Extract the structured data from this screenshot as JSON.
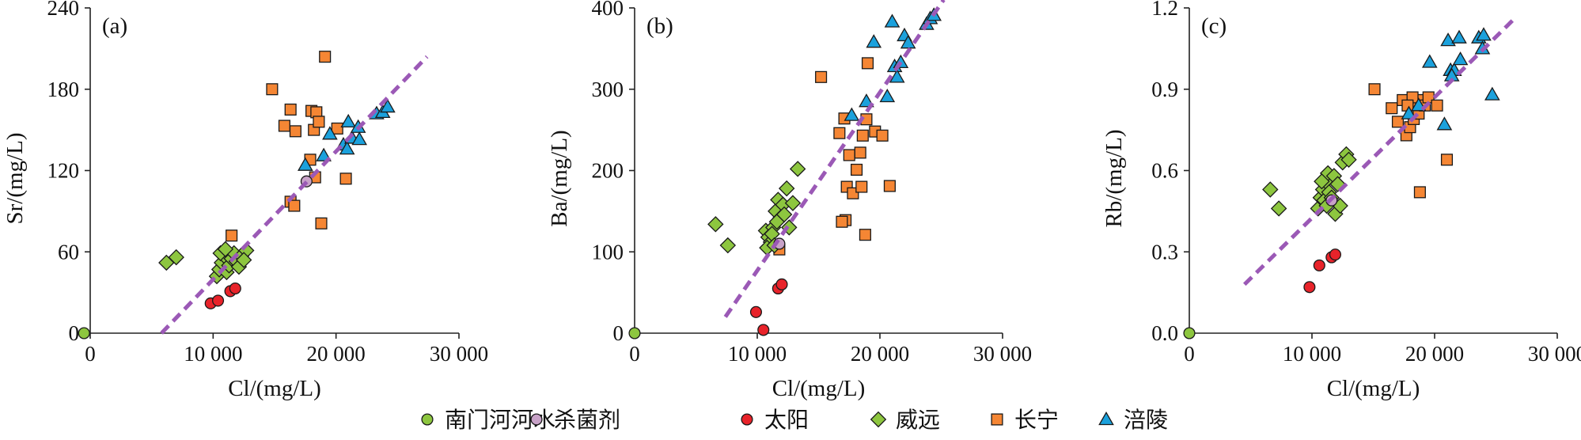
{
  "colors": {
    "nanmen": "#8DC63F",
    "shajunji": "#C8A2C8",
    "taiyang": "#E8232A",
    "weiyuan": "#8DC63F",
    "changning": "#F58634",
    "fuling": "#1BA1DC",
    "trendline": "#9B59B6"
  },
  "legend": [
    {
      "key": "nanmen",
      "label": "南门河河水",
      "marker": "circle"
    },
    {
      "key": "shajunji",
      "label": "杀菌剂",
      "marker": "circle"
    },
    {
      "key": "taiyang",
      "label": "太阳",
      "marker": "circle"
    },
    {
      "key": "weiyuan",
      "label": "威远",
      "marker": "diamond"
    },
    {
      "key": "changning",
      "label": "长宁",
      "marker": "square"
    },
    {
      "key": "fuling",
      "label": "涪陵",
      "marker": "triangle"
    }
  ],
  "chart_data": [
    {
      "type": "scatter",
      "panel_label": "(a)",
      "xlabel": "Cl/(mg/L)",
      "ylabel": "Sr/(mg/L)",
      "xlim": [
        0,
        30000
      ],
      "ylim": [
        0,
        240
      ],
      "xticks": [
        0,
        10000,
        20000,
        30000
      ],
      "xtick_labels": [
        "0",
        "10 000",
        "20 000",
        "30 000"
      ],
      "yticks": [
        0,
        60,
        120,
        180,
        240
      ],
      "ytick_labels": [
        "0",
        "60",
        "120",
        "180",
        "240"
      ],
      "trendline": {
        "x": [
          5800,
          27400
        ],
        "y": [
          0,
          204
        ]
      },
      "series": [
        {
          "key": "nanmen",
          "points": [
            [
              -500,
              0
            ]
          ]
        },
        {
          "key": "shajunji",
          "points": [
            [
              17600,
              112
            ]
          ]
        },
        {
          "key": "taiyang",
          "points": [
            [
              9800,
              22
            ],
            [
              10400,
              24
            ],
            [
              11400,
              31
            ],
            [
              11800,
              33
            ]
          ]
        },
        {
          "key": "weiyuan",
          "points": [
            [
              6200,
              52
            ],
            [
              7000,
              56
            ],
            [
              10300,
              42
            ],
            [
              10500,
              47
            ],
            [
              10700,
              52
            ],
            [
              10900,
              57
            ],
            [
              11100,
              45
            ],
            [
              11300,
              50
            ],
            [
              11500,
              55
            ],
            [
              11700,
              59
            ],
            [
              11900,
              53
            ],
            [
              12100,
              49
            ],
            [
              12300,
              57
            ],
            [
              12700,
              61
            ],
            [
              10600,
              59
            ],
            [
              11000,
              62
            ],
            [
              12500,
              54
            ]
          ]
        },
        {
          "key": "changning",
          "points": [
            [
              14800,
              180
            ],
            [
              15800,
              153
            ],
            [
              16300,
              165
            ],
            [
              16700,
              149
            ],
            [
              18000,
              164
            ],
            [
              18400,
              163
            ],
            [
              18200,
              150
            ],
            [
              18600,
              156
            ],
            [
              17900,
              128
            ],
            [
              19100,
              204
            ],
            [
              16300,
              97
            ],
            [
              16600,
              94
            ],
            [
              18300,
              115
            ],
            [
              18800,
              81
            ],
            [
              20800,
              114
            ],
            [
              20100,
              151
            ],
            [
              11500,
              72
            ]
          ]
        },
        {
          "key": "fuling",
          "points": [
            [
              17500,
              124
            ],
            [
              19000,
              131
            ],
            [
              19500,
              147
            ],
            [
              20600,
              139
            ],
            [
              21000,
              156
            ],
            [
              21300,
              144
            ],
            [
              21800,
              152
            ],
            [
              21900,
              143
            ],
            [
              23300,
              162
            ],
            [
              23800,
              163
            ],
            [
              24200,
              167
            ],
            [
              20900,
              136
            ]
          ]
        }
      ]
    },
    {
      "type": "scatter",
      "panel_label": "(b)",
      "xlabel": "Cl/(mg/L)",
      "ylabel": "Ba/(mg/L)",
      "xlim": [
        0,
        30000
      ],
      "ylim": [
        0,
        400
      ],
      "xticks": [
        0,
        10000,
        20000,
        30000
      ],
      "xtick_labels": [
        "0",
        "10 000",
        "20 000",
        "30 000"
      ],
      "yticks": [
        0,
        100,
        200,
        300,
        400
      ],
      "ytick_labels": [
        "0",
        "100",
        "200",
        "300",
        "400"
      ],
      "trendline": {
        "x": [
          7400,
          25200
        ],
        "y": [
          20,
          410
        ]
      },
      "series": [
        {
          "key": "nanmen",
          "points": [
            [
              0,
              0
            ]
          ]
        },
        {
          "key": "shajunji",
          "points": [
            [
              11800,
              110
            ]
          ]
        },
        {
          "key": "taiyang",
          "points": [
            [
              9900,
              26
            ],
            [
              10500,
              4
            ],
            [
              11700,
              55
            ],
            [
              12000,
              60
            ]
          ]
        },
        {
          "key": "weiyuan",
          "points": [
            [
              6600,
              134
            ],
            [
              7600,
              108
            ],
            [
              10700,
              126
            ],
            [
              10900,
              118
            ],
            [
              11100,
              112
            ],
            [
              11300,
              130
            ],
            [
              11500,
              150
            ],
            [
              11700,
              164
            ],
            [
              11900,
              142
            ],
            [
              12100,
              158
            ],
            [
              12400,
              178
            ],
            [
              12900,
              160
            ],
            [
              13300,
              202
            ],
            [
              10800,
              105
            ],
            [
              11200,
              122
            ],
            [
              11600,
              137
            ],
            [
              12200,
              146
            ],
            [
              12600,
              130
            ],
            [
              11400,
              108
            ]
          ]
        },
        {
          "key": "changning",
          "points": [
            [
              15200,
              315
            ],
            [
              16700,
              246
            ],
            [
              17100,
              264
            ],
            [
              17300,
              180
            ],
            [
              17500,
              219
            ],
            [
              17800,
              172
            ],
            [
              18100,
              201
            ],
            [
              18400,
              222
            ],
            [
              18600,
              243
            ],
            [
              18500,
              180
            ],
            [
              18900,
              263
            ],
            [
              19000,
              332
            ],
            [
              19600,
              248
            ],
            [
              20200,
              243
            ],
            [
              20800,
              181
            ],
            [
              17200,
              139
            ],
            [
              16900,
              137
            ],
            [
              18800,
              121
            ],
            [
              11800,
              103
            ]
          ]
        },
        {
          "key": "fuling",
          "points": [
            [
              17700,
              268
            ],
            [
              18900,
              285
            ],
            [
              19500,
              358
            ],
            [
              20600,
              291
            ],
            [
              21000,
              383
            ],
            [
              21200,
              328
            ],
            [
              21400,
              315
            ],
            [
              21700,
              333
            ],
            [
              22000,
              366
            ],
            [
              22300,
              357
            ],
            [
              23800,
              380
            ],
            [
              24100,
              387
            ],
            [
              24400,
              391
            ]
          ]
        }
      ]
    },
    {
      "type": "scatter",
      "panel_label": "(c)",
      "xlabel": "Cl/(mg/L)",
      "ylabel": "Rb/(mg/L)",
      "xlim": [
        0,
        30000
      ],
      "ylim": [
        0,
        1.2
      ],
      "xticks": [
        0,
        10000,
        20000,
        30000
      ],
      "xtick_labels": [
        "0",
        "10 000",
        "20 000",
        "30 000"
      ],
      "yticks": [
        0,
        0.3,
        0.6,
        0.9,
        1.2
      ],
      "ytick_labels": [
        "0.0",
        "0.3",
        "0.6",
        "0.9",
        "1.2"
      ],
      "trendline": {
        "x": [
          4500,
          26500
        ],
        "y": [
          0.18,
          1.16
        ]
      },
      "series": [
        {
          "key": "nanmen",
          "points": [
            [
              0,
              0
            ]
          ]
        },
        {
          "key": "shajunji",
          "points": [
            [
              11600,
              0.49
            ]
          ]
        },
        {
          "key": "taiyang",
          "points": [
            [
              9800,
              0.17
            ],
            [
              10600,
              0.25
            ],
            [
              11600,
              0.28
            ],
            [
              11900,
              0.29
            ]
          ]
        },
        {
          "key": "weiyuan",
          "points": [
            [
              6600,
              0.53
            ],
            [
              7300,
              0.46
            ],
            [
              10500,
              0.46
            ],
            [
              10700,
              0.5
            ],
            [
              10900,
              0.53
            ],
            [
              11000,
              0.49
            ],
            [
              11100,
              0.56
            ],
            [
              11300,
              0.59
            ],
            [
              11400,
              0.52
            ],
            [
              11600,
              0.5
            ],
            [
              11800,
              0.58
            ],
            [
              11900,
              0.44
            ],
            [
              12100,
              0.55
            ],
            [
              12300,
              0.47
            ],
            [
              12500,
              0.63
            ],
            [
              12800,
              0.66
            ],
            [
              13000,
              0.64
            ],
            [
              10800,
              0.56
            ],
            [
              11200,
              0.47
            ]
          ]
        },
        {
          "key": "changning",
          "points": [
            [
              15100,
              0.9
            ],
            [
              16500,
              0.83
            ],
            [
              17000,
              0.78
            ],
            [
              17400,
              0.86
            ],
            [
              17700,
              0.73
            ],
            [
              18000,
              0.76
            ],
            [
              18300,
              0.79
            ],
            [
              18500,
              0.85
            ],
            [
              18700,
              0.81
            ],
            [
              18900,
              0.86
            ],
            [
              19200,
              0.84
            ],
            [
              19500,
              0.87
            ],
            [
              20200,
              0.84
            ],
            [
              18800,
              0.52
            ],
            [
              21000,
              0.64
            ],
            [
              18200,
              0.87
            ],
            [
              17800,
              0.84
            ]
          ]
        },
        {
          "key": "fuling",
          "points": [
            [
              17900,
              0.81
            ],
            [
              18700,
              0.84
            ],
            [
              19600,
              1.0
            ],
            [
              20800,
              0.77
            ],
            [
              21100,
              1.08
            ],
            [
              21300,
              0.97
            ],
            [
              21600,
              0.97
            ],
            [
              22000,
              1.09
            ],
            [
              22100,
              1.01
            ],
            [
              23600,
              1.09
            ],
            [
              24000,
              1.1
            ],
            [
              23900,
              1.05
            ],
            [
              24700,
              0.88
            ],
            [
              21400,
              0.95
            ]
          ]
        }
      ]
    }
  ]
}
